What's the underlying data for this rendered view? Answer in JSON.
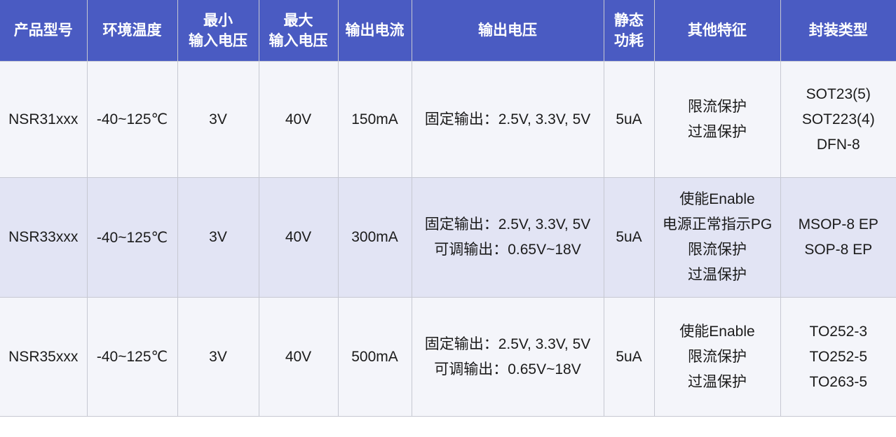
{
  "colors": {
    "header_bg": "#4a5bc2",
    "header_text": "#ffffff",
    "row_bg": "#f4f5fa",
    "row_alt_bg": "#e2e4f4",
    "border": "#c6c8d2",
    "body_text": "#1b1b1b"
  },
  "table": {
    "headers": {
      "model": "产品型号",
      "ambient_temp": "环境温度",
      "min_input_voltage_line1": "最小",
      "min_input_voltage_line2": "输入电压",
      "max_input_voltage_line1": "最大",
      "max_input_voltage_line2": "输入电压",
      "output_current": "输出电流",
      "output_voltage": "输出电压",
      "quiescent_power_line1": "静态",
      "quiescent_power_line2": "功耗",
      "other_features": "其他特征",
      "package_type": "封装类型"
    },
    "rows": [
      {
        "model": "NSR31xxx",
        "ambient_temp": "-40~125℃",
        "min_input_voltage": "3V",
        "max_input_voltage": "40V",
        "output_current": "150mA",
        "output_voltage": [
          "固定输出：2.5V, 3.3V, 5V"
        ],
        "quiescent_power": "5uA",
        "other_features": [
          "限流保护",
          "过温保护"
        ],
        "package_types": [
          "SOT23(5)",
          "SOT223(4)",
          "DFN-8"
        ]
      },
      {
        "model": "NSR33xxx",
        "ambient_temp": "-40~125℃",
        "min_input_voltage": "3V",
        "max_input_voltage": "40V",
        "output_current": "300mA",
        "output_voltage": [
          "固定输出：2.5V, 3.3V, 5V",
          "可调输出：0.65V~18V"
        ],
        "quiescent_power": "5uA",
        "other_features": [
          "使能Enable",
          "电源正常指示PG",
          "限流保护",
          "过温保护"
        ],
        "package_types": [
          "MSOP-8 EP",
          "SOP-8 EP"
        ]
      },
      {
        "model": "NSR35xxx",
        "ambient_temp": "-40~125℃",
        "min_input_voltage": "3V",
        "max_input_voltage": "40V",
        "output_current": "500mA",
        "output_voltage": [
          "固定输出：2.5V, 3.3V, 5V",
          "可调输出：0.65V~18V"
        ],
        "quiescent_power": "5uA",
        "other_features": [
          "使能Enable",
          "限流保护",
          "过温保护"
        ],
        "package_types": [
          "TO252-3",
          "TO252-5",
          "TO263-5"
        ]
      }
    ]
  }
}
